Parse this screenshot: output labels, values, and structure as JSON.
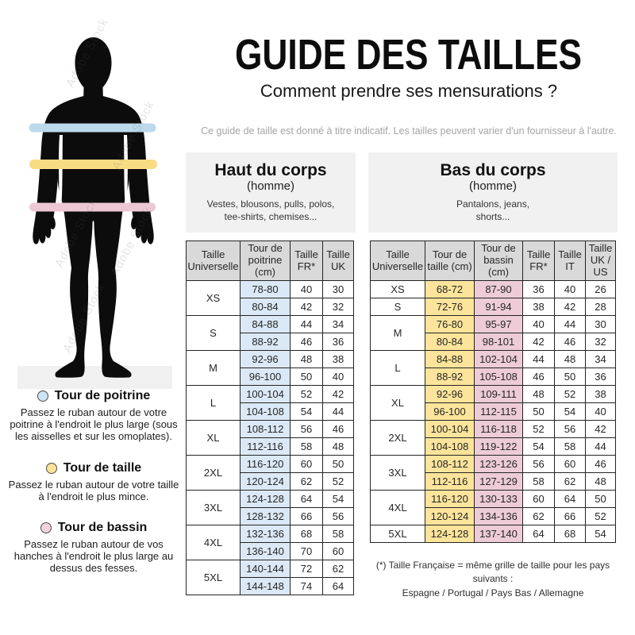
{
  "header": {
    "title": "GUIDE DES TAILLES",
    "subtitle": "Comment prendre ses mensurations ?",
    "notice": "Ce guide de taille est donné à titre indicatif. Les tailles peuvent varier d'un fournisseur à l'autre."
  },
  "figure": {
    "watermark": "Adobe Stock",
    "silhouette_color": "#0c0c0c",
    "bands": [
      {
        "name": "tour-de-poitrine",
        "color": "#bdd9ec"
      },
      {
        "name": "tour-de-taille",
        "color": "#f8dc84"
      },
      {
        "name": "tour-de-bassin",
        "color": "#edc8d4"
      }
    ]
  },
  "legend": [
    {
      "title": "Tour de poitrine",
      "color": "#cfe4f4",
      "text": "Passez le ruban autour de votre poitrine à l'endroit le plus large (sous les aisselles et sur les omoplates)."
    },
    {
      "title": "Tour de taille",
      "color": "#fbe49a",
      "text": "Passez le ruban autour de votre taille à l'endroit le plus mince."
    },
    {
      "title": "Tour de bassin",
      "color": "#f2d2dd",
      "text": "Passez le ruban autour de vos hanches à l'endroit le plus large au dessus des fesses."
    }
  ],
  "tables": {
    "haut": {
      "title": "Haut du corps",
      "subtitle": "(homme)",
      "items": "Vestes, blousons, pulls, polos,\ntee-shirts, chemises...",
      "columns": [
        "Taille Universelle",
        "Tour de poitrine (cm)",
        "Taille FR*",
        "Taille UK"
      ],
      "col_colors": [
        null,
        "#dbe9f6",
        null,
        null
      ],
      "groups": [
        {
          "size": "XS",
          "rows": [
            [
              "78-80",
              "40",
              "30"
            ],
            [
              "80-84",
              "42",
              "32"
            ]
          ]
        },
        {
          "size": "S",
          "rows": [
            [
              "84-88",
              "44",
              "34"
            ],
            [
              "88-92",
              "46",
              "36"
            ]
          ]
        },
        {
          "size": "M",
          "rows": [
            [
              "92-96",
              "48",
              "38"
            ],
            [
              "96-100",
              "50",
              "40"
            ]
          ]
        },
        {
          "size": "L",
          "rows": [
            [
              "100-104",
              "52",
              "42"
            ],
            [
              "104-108",
              "54",
              "44"
            ]
          ]
        },
        {
          "size": "XL",
          "rows": [
            [
              "108-112",
              "56",
              "46"
            ],
            [
              "112-116",
              "58",
              "48"
            ]
          ]
        },
        {
          "size": "2XL",
          "rows": [
            [
              "116-120",
              "60",
              "50"
            ],
            [
              "120-124",
              "62",
              "52"
            ]
          ]
        },
        {
          "size": "3XL",
          "rows": [
            [
              "124-128",
              "64",
              "54"
            ],
            [
              "128-132",
              "66",
              "56"
            ]
          ]
        },
        {
          "size": "4XL",
          "rows": [
            [
              "132-136",
              "68",
              "58"
            ],
            [
              "136-140",
              "70",
              "60"
            ]
          ]
        },
        {
          "size": "5XL",
          "rows": [
            [
              "140-144",
              "72",
              "62"
            ],
            [
              "144-148",
              "74",
              "64"
            ]
          ]
        }
      ]
    },
    "bas": {
      "title": "Bas du corps",
      "subtitle": "(homme)",
      "items": "Pantalons, jeans,\nshorts...",
      "columns": [
        "Taille Universelle",
        "Tour de taille (cm)",
        "Tour de bassin (cm)",
        "Taille FR*",
        "Taille IT",
        "Taille UK / US"
      ],
      "col_colors": [
        null,
        "#fce49b",
        "#edccd7",
        null,
        null,
        null
      ],
      "groups": [
        {
          "size": "XS",
          "rows": [
            [
              "68-72",
              "87-90",
              "36",
              "40",
              "26"
            ]
          ]
        },
        {
          "size": "S",
          "rows": [
            [
              "72-76",
              "91-94",
              "38",
              "42",
              "28"
            ]
          ]
        },
        {
          "size": "M",
          "rows": [
            [
              "76-80",
              "95-97",
              "40",
              "44",
              "30"
            ],
            [
              "80-84",
              "98-101",
              "42",
              "46",
              "32"
            ]
          ]
        },
        {
          "size": "L",
          "rows": [
            [
              "84-88",
              "102-104",
              "44",
              "48",
              "34"
            ],
            [
              "88-92",
              "105-108",
              "46",
              "50",
              "36"
            ]
          ]
        },
        {
          "size": "XL",
          "rows": [
            [
              "92-96",
              "109-111",
              "48",
              "52",
              "38"
            ],
            [
              "96-100",
              "112-115",
              "50",
              "54",
              "40"
            ]
          ]
        },
        {
          "size": "2XL",
          "rows": [
            [
              "100-104",
              "116-118",
              "52",
              "56",
              "42"
            ],
            [
              "104-108",
              "119-122",
              "54",
              "58",
              "44"
            ]
          ]
        },
        {
          "size": "3XL",
          "rows": [
            [
              "108-112",
              "123-126",
              "56",
              "60",
              "46"
            ],
            [
              "112-116",
              "127-129",
              "58",
              "62",
              "48"
            ]
          ]
        },
        {
          "size": "4XL",
          "rows": [
            [
              "116-120",
              "130-133",
              "60",
              "64",
              "50"
            ],
            [
              "120-124",
              "134-136",
              "62",
              "66",
              "52"
            ]
          ]
        },
        {
          "size": "5XL",
          "rows": [
            [
              "124-128",
              "137-140",
              "64",
              "68",
              "54"
            ]
          ]
        }
      ]
    }
  },
  "footnote": {
    "line1": "(*) Taille Française = même grille de taille pour les pays suivants :",
    "line2": "Espagne / Portugal / Pays Bas / Allemagne"
  }
}
